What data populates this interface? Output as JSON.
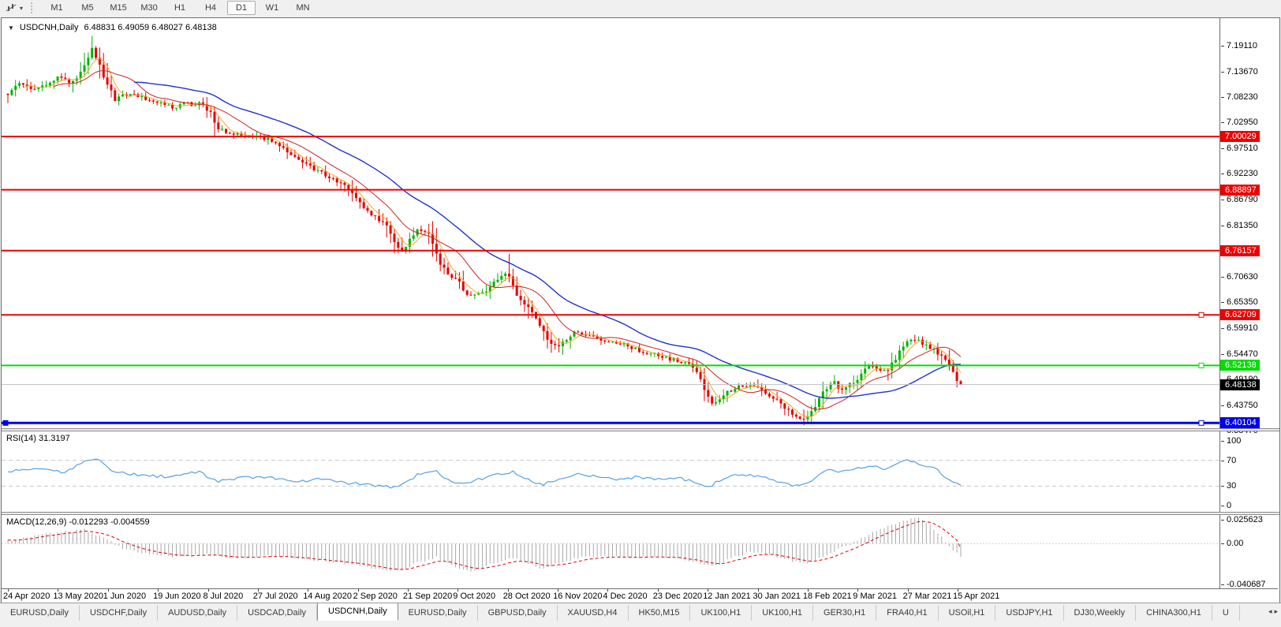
{
  "toolbar": {
    "tool_icon": "crosshair-chart-tool",
    "dropdown_arrow": "▾",
    "timeframes": [
      "M1",
      "M5",
      "M15",
      "M30",
      "H1",
      "H4",
      "D1",
      "W1",
      "MN"
    ],
    "active_timeframe": "D1"
  },
  "chart": {
    "collapse_arrow": "▼",
    "symbol": "USDCNH,Daily",
    "ohlc_text": "6.48831 6.49059 6.48027 6.48138",
    "open": 6.48831,
    "high": 6.49059,
    "low": 6.48027,
    "close": 6.48138
  },
  "price_axis": {
    "ticks": [
      "7.19110",
      "7.13670",
      "7.08230",
      "7.02950",
      "6.97510",
      "6.92230",
      "6.86790",
      "6.81350",
      "6.70630",
      "6.65350",
      "6.59910",
      "6.54470",
      "6.49190",
      "6.43750",
      "6.38470"
    ],
    "badges": [
      {
        "text": "7.00029",
        "value": 7.00029,
        "bg": "#ee0000",
        "fg": "#ffffff"
      },
      {
        "text": "6.88897",
        "value": 6.88897,
        "bg": "#ee0000",
        "fg": "#ffffff"
      },
      {
        "text": "6.76157",
        "value": 6.76157,
        "bg": "#ee0000",
        "fg": "#ffffff"
      },
      {
        "text": "6.62709",
        "value": 6.62709,
        "bg": "#ee0000",
        "fg": "#ffffff"
      },
      {
        "text": "6.52138",
        "value": 6.52138,
        "bg": "#00dd00",
        "fg": "#ffffff"
      },
      {
        "text": "6.48138",
        "value": 6.48138,
        "bg": "#000000",
        "fg": "#ffffff"
      },
      {
        "text": "6.40104",
        "value": 6.40104,
        "bg": "#0000ee",
        "fg": "#ffffff"
      }
    ]
  },
  "indicators": {
    "rsi": {
      "label": "RSI(14) 31.3197",
      "period": 14,
      "value": 31.3197,
      "levels": [
        100,
        70,
        30,
        0
      ],
      "line_color": "#55a0e6"
    },
    "macd": {
      "label": "MACD(12,26,9) -0.012293 -0.004559",
      "params": "12,26,9",
      "macd_value": -0.012293,
      "signal_value": -0.004559,
      "axis_labels": [
        {
          "text": "0.025623",
          "value": 0.025623
        },
        {
          "text": "0.00",
          "value": 0
        },
        {
          "text": "-0.040687",
          "value": -0.040687
        }
      ]
    }
  },
  "date_axis": [
    "24 Apr 2020",
    "13 May 2020",
    "1 Jun 2020",
    "19 Jun 2020",
    "8 Jul 2020",
    "27 Jul 2020",
    "14 Aug 2020",
    "2 Sep 2020",
    "21 Sep 2020",
    "9 Oct 2020",
    "28 Oct 2020",
    "16 Nov 2020",
    "4 Dec 2020",
    "23 Dec 2020",
    "12 Jan 2021",
    "30 Jan 2021",
    "18 Feb 2021",
    "9 Mar 2021",
    "27 Mar 2021",
    "15 Apr 2021"
  ],
  "tabs": {
    "items": [
      "EURUSD,Daily",
      "USDCHF,Daily",
      "AUDUSD,Daily",
      "USDCAD,Daily",
      "USDCNH,Daily",
      "EURUSD,Daily",
      "GBPUSD,Daily",
      "XAUUSD,H4",
      "HK50,M15",
      "UK100,H1",
      "UK100,H1",
      "GER30,H1",
      "FRA40,H1",
      "USOil,H1",
      "USDJPY,H1",
      "DJ30,Weekly",
      "CHINA300,H1",
      "U"
    ],
    "active_index": 4,
    "scroll_left_arrow": "◂",
    "scroll_right_arrow": "▸"
  },
  "chart_data": {
    "type": "candlestick",
    "symbol": "USDCNH",
    "timeframe": "Daily",
    "y_range": [
      6.39,
      7.248
    ],
    "num_candles": 250,
    "candle_colors": {
      "up": "#00b300",
      "down": "#e60000"
    },
    "moving_averages": [
      {
        "period": 5,
        "color": "#ffa520",
        "width": 1
      },
      {
        "period": 13,
        "color": "#cc2222",
        "width": 1
      },
      {
        "period": 34,
        "color": "#2233cc",
        "width": 1.4
      }
    ],
    "hlines": [
      {
        "price": 7.00029,
        "color": "#ee0000",
        "width": 2,
        "handles": false
      },
      {
        "price": 6.88897,
        "color": "#ee0000",
        "width": 2,
        "handles": false
      },
      {
        "price": 6.76157,
        "color": "#ee0000",
        "width": 2,
        "handles": false
      },
      {
        "price": 6.62709,
        "color": "#ee0000",
        "width": 2,
        "handles": true
      },
      {
        "price": 6.52138,
        "color": "#00dd00",
        "width": 2,
        "handles": true
      },
      {
        "price": 6.48138,
        "color": "#c0c0c0",
        "width": 1,
        "handles": false
      },
      {
        "price": 6.40104,
        "color": "#0000ee",
        "width": 3,
        "handles": true,
        "left_handle": true
      }
    ],
    "price_path": [
      [
        0.0,
        7.09
      ],
      [
        0.012,
        7.115
      ],
      [
        0.025,
        7.095
      ],
      [
        0.04,
        7.11
      ],
      [
        0.055,
        7.125
      ],
      [
        0.068,
        7.112
      ],
      [
        0.08,
        7.15
      ],
      [
        0.088,
        7.185
      ],
      [
        0.094,
        7.16
      ],
      [
        0.102,
        7.12
      ],
      [
        0.112,
        7.078
      ],
      [
        0.125,
        7.09
      ],
      [
        0.14,
        7.083
      ],
      [
        0.155,
        7.072
      ],
      [
        0.17,
        7.062
      ],
      [
        0.185,
        7.068
      ],
      [
        0.2,
        7.07
      ],
      [
        0.212,
        7.052
      ],
      [
        0.222,
        7.013
      ],
      [
        0.235,
        7.008
      ],
      [
        0.25,
        7.0
      ],
      [
        0.262,
        6.998
      ],
      [
        0.275,
        6.993
      ],
      [
        0.29,
        6.972
      ],
      [
        0.305,
        6.952
      ],
      [
        0.32,
        6.932
      ],
      [
        0.335,
        6.918
      ],
      [
        0.35,
        6.902
      ],
      [
        0.362,
        6.878
      ],
      [
        0.375,
        6.848
      ],
      [
        0.388,
        6.83
      ],
      [
        0.398,
        6.812
      ],
      [
        0.406,
        6.78
      ],
      [
        0.413,
        6.757
      ],
      [
        0.422,
        6.79
      ],
      [
        0.432,
        6.808
      ],
      [
        0.442,
        6.8
      ],
      [
        0.452,
        6.742
      ],
      [
        0.462,
        6.71
      ],
      [
        0.472,
        6.7
      ],
      [
        0.482,
        6.668
      ],
      [
        0.492,
        6.672
      ],
      [
        0.502,
        6.68
      ],
      [
        0.512,
        6.7
      ],
      [
        0.522,
        6.718
      ],
      [
        0.528,
        6.7
      ],
      [
        0.535,
        6.665
      ],
      [
        0.545,
        6.648
      ],
      [
        0.555,
        6.618
      ],
      [
        0.565,
        6.578
      ],
      [
        0.575,
        6.558
      ],
      [
        0.585,
        6.575
      ],
      [
        0.595,
        6.596
      ],
      [
        0.605,
        6.588
      ],
      [
        0.618,
        6.578
      ],
      [
        0.632,
        6.572
      ],
      [
        0.645,
        6.566
      ],
      [
        0.658,
        6.556
      ],
      [
        0.672,
        6.548
      ],
      [
        0.685,
        6.54
      ],
      [
        0.7,
        6.533
      ],
      [
        0.712,
        6.527
      ],
      [
        0.724,
        6.51
      ],
      [
        0.732,
        6.468
      ],
      [
        0.74,
        6.443
      ],
      [
        0.75,
        6.458
      ],
      [
        0.76,
        6.472
      ],
      [
        0.772,
        6.478
      ],
      [
        0.785,
        6.48
      ],
      [
        0.797,
        6.462
      ],
      [
        0.808,
        6.452
      ],
      [
        0.818,
        6.428
      ],
      [
        0.828,
        6.41
      ],
      [
        0.836,
        6.404
      ],
      [
        0.845,
        6.428
      ],
      [
        0.855,
        6.462
      ],
      [
        0.865,
        6.488
      ],
      [
        0.875,
        6.472
      ],
      [
        0.885,
        6.482
      ],
      [
        0.895,
        6.502
      ],
      [
        0.905,
        6.522
      ],
      [
        0.915,
        6.508
      ],
      [
        0.925,
        6.515
      ],
      [
        0.935,
        6.548
      ],
      [
        0.945,
        6.572
      ],
      [
        0.952,
        6.576
      ],
      [
        0.96,
        6.566
      ],
      [
        0.97,
        6.556
      ],
      [
        0.978,
        6.546
      ],
      [
        0.986,
        6.525
      ],
      [
        0.993,
        6.502
      ],
      [
        1.0,
        6.4814
      ]
    ],
    "rsi_path": [
      [
        0,
        52
      ],
      [
        0.03,
        58
      ],
      [
        0.06,
        50
      ],
      [
        0.08,
        70
      ],
      [
        0.095,
        74
      ],
      [
        0.11,
        52
      ],
      [
        0.14,
        47
      ],
      [
        0.17,
        44
      ],
      [
        0.2,
        52
      ],
      [
        0.22,
        37
      ],
      [
        0.25,
        44
      ],
      [
        0.28,
        42
      ],
      [
        0.3,
        36
      ],
      [
        0.33,
        42
      ],
      [
        0.36,
        34
      ],
      [
        0.39,
        31
      ],
      [
        0.41,
        28
      ],
      [
        0.43,
        48
      ],
      [
        0.45,
        52
      ],
      [
        0.47,
        33
      ],
      [
        0.49,
        38
      ],
      [
        0.51,
        48
      ],
      [
        0.53,
        52
      ],
      [
        0.56,
        32
      ],
      [
        0.58,
        42
      ],
      [
        0.6,
        50
      ],
      [
        0.62,
        44
      ],
      [
        0.64,
        41
      ],
      [
        0.66,
        44
      ],
      [
        0.68,
        41
      ],
      [
        0.7,
        43
      ],
      [
        0.72,
        38
      ],
      [
        0.735,
        28
      ],
      [
        0.75,
        42
      ],
      [
        0.77,
        48
      ],
      [
        0.79,
        44
      ],
      [
        0.81,
        36
      ],
      [
        0.83,
        30
      ],
      [
        0.845,
        40
      ],
      [
        0.86,
        55
      ],
      [
        0.875,
        52
      ],
      [
        0.89,
        58
      ],
      [
        0.905,
        62
      ],
      [
        0.92,
        57
      ],
      [
        0.935,
        65
      ],
      [
        0.945,
        72
      ],
      [
        0.955,
        64
      ],
      [
        0.965,
        61
      ],
      [
        0.975,
        55
      ],
      [
        0.985,
        42
      ],
      [
        1.0,
        31.32
      ]
    ],
    "macd_path": [
      [
        0,
        0.003
      ],
      [
        0.04,
        0.009
      ],
      [
        0.08,
        0.013
      ],
      [
        0.1,
        0.006
      ],
      [
        0.12,
        -0.004
      ],
      [
        0.15,
        -0.01
      ],
      [
        0.18,
        -0.013
      ],
      [
        0.21,
        -0.01
      ],
      [
        0.24,
        -0.014
      ],
      [
        0.27,
        -0.011
      ],
      [
        0.3,
        -0.014
      ],
      [
        0.33,
        -0.016
      ],
      [
        0.36,
        -0.019
      ],
      [
        0.39,
        -0.024
      ],
      [
        0.41,
        -0.026
      ],
      [
        0.43,
        -0.018
      ],
      [
        0.45,
        -0.013
      ],
      [
        0.47,
        -0.022
      ],
      [
        0.49,
        -0.026
      ],
      [
        0.51,
        -0.018
      ],
      [
        0.53,
        -0.013
      ],
      [
        0.56,
        -0.023
      ],
      [
        0.58,
        -0.018
      ],
      [
        0.6,
        -0.013
      ],
      [
        0.62,
        -0.011
      ],
      [
        0.64,
        -0.012
      ],
      [
        0.66,
        -0.013
      ],
      [
        0.68,
        -0.012
      ],
      [
        0.7,
        -0.013
      ],
      [
        0.72,
        -0.017
      ],
      [
        0.74,
        -0.022
      ],
      [
        0.76,
        -0.013
      ],
      [
        0.78,
        -0.008
      ],
      [
        0.8,
        -0.01
      ],
      [
        0.82,
        -0.016
      ],
      [
        0.84,
        -0.019
      ],
      [
        0.86,
        -0.01
      ],
      [
        0.88,
        -0.002
      ],
      [
        0.9,
        0.007
      ],
      [
        0.92,
        0.015
      ],
      [
        0.94,
        0.022
      ],
      [
        0.955,
        0.0245
      ],
      [
        0.97,
        0.016
      ],
      [
        0.98,
        0.006
      ],
      [
        0.99,
        -0.004
      ],
      [
        1.0,
        -0.0123
      ]
    ],
    "macd_display_range": [
      -0.0418,
      0.0268
    ]
  }
}
